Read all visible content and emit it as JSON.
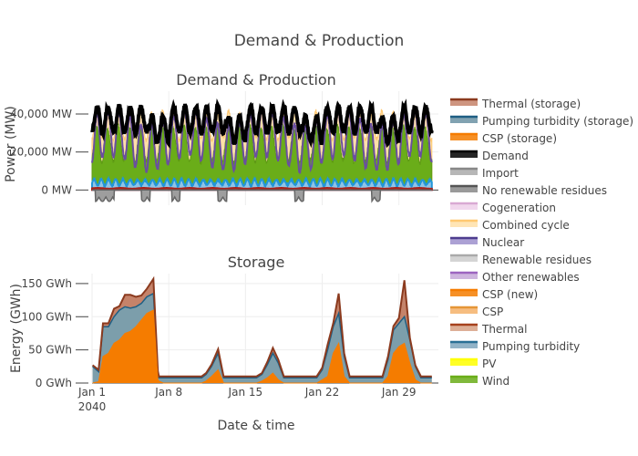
{
  "page_title": "Demand & Production",
  "chart_data": [
    {
      "type": "area",
      "title": "Demand & Production",
      "xlabel": "",
      "ylabel": "Power (MW)",
      "ylim": [
        -8000,
        52000
      ],
      "yticks": [
        0,
        20000,
        40000
      ],
      "ytick_labels": [
        "0 MW",
        "20,000 MW",
        "40,000 MW"
      ],
      "grid": true,
      "x_start": "2040-01-01",
      "x_end": "2040-02-03",
      "series": [
        {
          "name": "Wind",
          "color": "#6aad19",
          "approx_range_mw": [
            10000,
            38000
          ]
        },
        {
          "name": "Nuclear",
          "color": "#7155a3",
          "approx_range_mw": [
            9000,
            35000
          ]
        },
        {
          "name": "Combined cycle",
          "color": "#ffe0a8",
          "approx_range_mw": [
            25000,
            45000
          ]
        },
        {
          "name": "Pumping turbidity",
          "color": "#3aa5de",
          "approx_range_mw": [
            2000,
            6000
          ]
        },
        {
          "name": "Thermal",
          "color": "#b5241e",
          "approx_range_mw": [
            500,
            1500
          ]
        },
        {
          "name": "Import",
          "color": "#999999",
          "approx_range_mw": [
            -6000,
            0
          ]
        },
        {
          "name": "Demand",
          "color": "#000000",
          "approx_range_mw": [
            28000,
            48000
          ]
        }
      ]
    },
    {
      "type": "area",
      "title": "Storage",
      "xlabel": "Date & time",
      "ylabel": "Energy (GWh)",
      "ylim": [
        0,
        165
      ],
      "yticks": [
        0,
        50,
        100,
        150
      ],
      "ytick_labels": [
        "0 GWh",
        "50 GWh",
        "100 GWh",
        "150 GWh"
      ],
      "grid": true,
      "xticks": [
        "2040-01-01",
        "2040-01-08",
        "2040-01-15",
        "2040-01-22",
        "2040-01-29"
      ],
      "xtick_labels": [
        "Jan 1",
        "Jan 8",
        "Jan 15",
        "Jan 22",
        "Jan 29"
      ],
      "xtick_year": "2040",
      "series": [
        {
          "name": "CSP (storage)",
          "color": "#f57c00",
          "x": [
            0.05,
            0.6,
            1.0,
            1.5,
            2.0,
            2.5,
            3.0,
            3.5,
            4.0,
            4.5,
            5.0,
            5.6,
            6.0,
            6.1,
            6.5,
            7.5,
            8.5,
            9.5,
            10.0,
            10.4,
            10.9,
            11.5,
            12.0,
            13.0,
            14.0,
            15.0,
            15.5,
            16.0,
            16.5,
            17.0,
            17.5,
            18.0,
            18.5,
            19.0,
            20.0,
            20.5,
            21.0,
            21.5,
            22.0,
            22.5,
            23.0,
            23.5,
            24.0,
            25.5,
            26.0,
            26.5,
            27.0,
            27.5,
            28.0,
            28.5,
            29.0,
            29.5,
            30.0,
            30.5,
            31.0
          ],
          "values": [
            0,
            2,
            40,
            45,
            60,
            65,
            75,
            78,
            85,
            95,
            105,
            110,
            5,
            3,
            0,
            0,
            0,
            0,
            0,
            3,
            10,
            20,
            0,
            0,
            0,
            0,
            3,
            8,
            15,
            5,
            0,
            0,
            0,
            0,
            0,
            0,
            5,
            10,
            45,
            60,
            10,
            0,
            0,
            0,
            0,
            0,
            10,
            45,
            55,
            60,
            30,
            5,
            0,
            0,
            0
          ]
        },
        {
          "name": "Pumping turbidity (storage)",
          "color": "#7c9eab",
          "x": [
            0.05,
            0.6,
            1.0,
            1.5,
            2.0,
            2.5,
            3.0,
            3.5,
            4.0,
            4.5,
            5.0,
            5.6,
            6.0,
            6.1,
            6.5,
            7.5,
            8.5,
            9.5,
            10.0,
            10.4,
            10.9,
            11.5,
            12.0,
            13.0,
            14.0,
            15.0,
            15.5,
            16.0,
            16.5,
            17.0,
            17.5,
            18.0,
            18.5,
            19.0,
            20.0,
            20.5,
            21.0,
            21.5,
            22.0,
            22.5,
            23.0,
            23.5,
            24.0,
            25.5,
            26.0,
            26.5,
            27.0,
            27.5,
            28.0,
            28.5,
            29.0,
            29.5,
            30.0,
            30.5,
            31.0
          ],
          "values": [
            25,
            15,
            45,
            40,
            40,
            45,
            40,
            35,
            30,
            25,
            25,
            25,
            10,
            5,
            8,
            8,
            8,
            8,
            8,
            10,
            15,
            25,
            8,
            8,
            8,
            8,
            10,
            20,
            30,
            25,
            8,
            8,
            8,
            8,
            8,
            8,
            15,
            40,
            40,
            45,
            30,
            8,
            8,
            8,
            8,
            8,
            25,
            35,
            35,
            40,
            35,
            20,
            8,
            8,
            8
          ]
        },
        {
          "name": "Thermal (storage)",
          "color": "#c5836a",
          "x": [
            0.05,
            0.6,
            1.0,
            1.5,
            2.0,
            2.5,
            3.0,
            3.5,
            4.0,
            4.5,
            5.0,
            5.6,
            6.0,
            6.1,
            6.5,
            7.5,
            8.5,
            9.5,
            10.0,
            10.4,
            10.9,
            11.5,
            12.0,
            13.0,
            14.0,
            15.0,
            15.5,
            16.0,
            16.5,
            17.0,
            17.5,
            18.0,
            18.5,
            19.0,
            20.0,
            20.5,
            21.0,
            21.5,
            22.0,
            22.5,
            23.0,
            23.5,
            24.0,
            25.5,
            26.0,
            26.5,
            27.0,
            27.5,
            28.0,
            28.5,
            29.0,
            29.5,
            30.0,
            30.5,
            31.0
          ],
          "values": [
            2,
            3,
            5,
            5,
            12,
            6,
            18,
            20,
            15,
            12,
            12,
            22,
            3,
            2,
            2,
            2,
            2,
            2,
            2,
            2,
            3,
            6,
            2,
            2,
            2,
            2,
            2,
            4,
            8,
            5,
            2,
            2,
            2,
            2,
            2,
            2,
            3,
            8,
            5,
            30,
            5,
            2,
            2,
            2,
            2,
            2,
            5,
            6,
            8,
            55,
            3,
            2,
            2,
            2,
            2
          ]
        }
      ]
    }
  ],
  "legend": [
    {
      "name": "Thermal (storage)",
      "color": "#c5836a",
      "line": "#8b3a1e"
    },
    {
      "name": "Pumping turbidity (storage)",
      "color": "#6b92a3",
      "line": "#1f5f84"
    },
    {
      "name": "CSP (storage)",
      "color": "#f57c00",
      "line": "#f57c00"
    },
    {
      "name": "Demand",
      "color": "#000000",
      "line": "#000000"
    },
    {
      "name": "Import",
      "color": "#aaaaaa",
      "line": "#888888"
    },
    {
      "name": "No renewable residues",
      "color": "#888888",
      "line": "#555555"
    },
    {
      "name": "Cogeneration",
      "color": "#eed0ea",
      "line": "#d9a9d3"
    },
    {
      "name": "Combined cycle",
      "color": "#ffe0a8",
      "line": "#ffc870"
    },
    {
      "name": "Nuclear",
      "color": "#9e91cc",
      "line": "#4d3c8f"
    },
    {
      "name": "Renewable residues",
      "color": "#cccccc",
      "line": "#aaaaaa"
    },
    {
      "name": "Other renewables",
      "color": "#c6a8d8",
      "line": "#9c64c0"
    },
    {
      "name": "CSP (new)",
      "color": "#f57c00",
      "line": "#f57c00"
    },
    {
      "name": "CSP",
      "color": "#f5b26a",
      "line": "#e59637"
    },
    {
      "name": "Thermal",
      "color": "#d7a185",
      "line": "#a6411d"
    },
    {
      "name": "Pumping turbidity",
      "color": "#7fa6bd",
      "line": "#2a6f95"
    },
    {
      "name": "PV",
      "color": "#ffff00",
      "line": "#ffff00"
    },
    {
      "name": "Wind",
      "color": "#6aad19",
      "line": "#6aad19"
    }
  ]
}
